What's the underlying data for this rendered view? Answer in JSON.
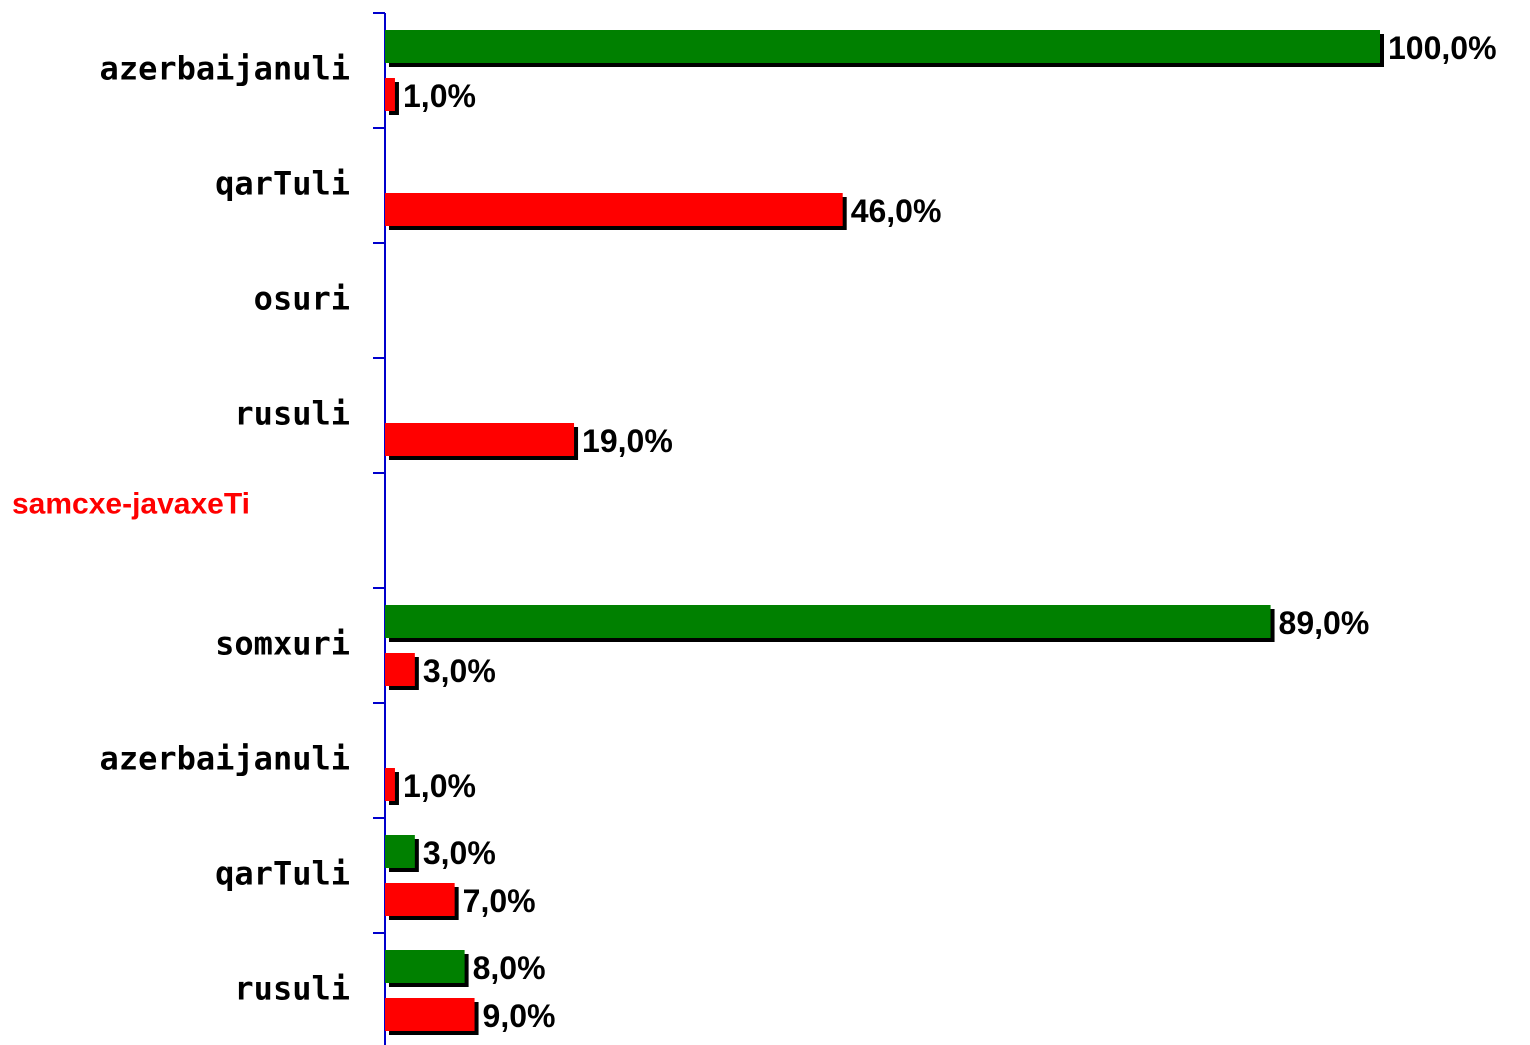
{
  "chart_data": {
    "type": "hbar",
    "categories": [
      "azerbaijanuli",
      "qarTuli",
      "osuri",
      "rusuli",
      "samcxe-javaxeTi",
      "somxuri",
      "azerbaijanuli",
      "qarTuli",
      "rusuli"
    ],
    "category_label_colors": [
      "#000000",
      "#000000",
      "#000000",
      "#000000",
      "#ff0000",
      "#000000",
      "#000000",
      "#000000",
      "#000000"
    ],
    "series": [
      {
        "color": "#008000",
        "values": [
          100,
          null,
          null,
          null,
          null,
          89,
          null,
          3,
          8
        ],
        "value_labels": [
          "100,0%",
          null,
          null,
          null,
          null,
          "89,0%",
          null,
          "3,0%",
          "8,0%"
        ]
      },
      {
        "color": "#ff0000",
        "values": [
          1,
          46,
          null,
          19,
          null,
          3,
          1,
          7,
          9
        ],
        "value_labels": [
          "1,0%",
          "46,0%",
          null,
          "19,0%",
          null,
          "3,0%",
          "1,0%",
          "7,0%",
          "9,0%"
        ]
      }
    ],
    "xlim": [
      0,
      100
    ]
  }
}
